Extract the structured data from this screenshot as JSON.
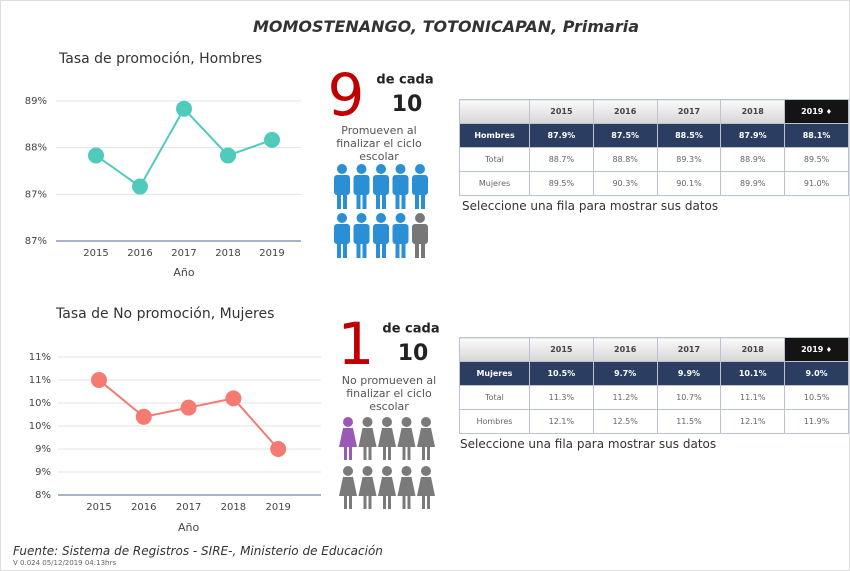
{
  "title": "MOMOSTENANGO, TOTONICAPAN, Primaria",
  "chart_data": [
    {
      "type": "line",
      "title": "Tasa de promoción, Hombres",
      "x_label": "Año",
      "categories": [
        "2015",
        "2016",
        "2017",
        "2018",
        "2019"
      ],
      "values": [
        87.9,
        87.5,
        88.5,
        87.9,
        88.1
      ],
      "color": "#4fcbbb",
      "ylim": [
        86.8,
        88.6
      ],
      "yticks": [
        {
          "value": 86.8,
          "label": "87%"
        },
        {
          "value": 87.4,
          "label": "87%"
        },
        {
          "value": 88.0,
          "label": "88%"
        },
        {
          "value": 88.6,
          "label": "89%"
        }
      ],
      "grid": true
    },
    {
      "type": "line",
      "title": "Tasa de No promoción, Mujeres",
      "x_label": "Año",
      "categories": [
        "2015",
        "2016",
        "2017",
        "2018",
        "2019"
      ],
      "values": [
        10.5,
        9.7,
        9.9,
        10.1,
        9.0
      ],
      "color": "#f47a72",
      "ylim": [
        8,
        11
      ],
      "yticks": [
        {
          "value": 8.0,
          "label": "8%"
        },
        {
          "value": 8.5,
          "label": "9%"
        },
        {
          "value": 9.0,
          "label": "9%"
        },
        {
          "value": 9.5,
          "label": "10%"
        },
        {
          "value": 10.0,
          "label": "10%"
        },
        {
          "value": 10.5,
          "label": "11%"
        },
        {
          "value": 11.0,
          "label": "11%"
        }
      ],
      "grid": true
    }
  ],
  "infographics": [
    {
      "number": "9",
      "connector": "de cada",
      "total": "10",
      "text": "Promueven al finalizar el ciclo escolar"
    },
    {
      "number": "1",
      "connector": "de cada",
      "total": "10",
      "text": "No promueven al finalizar el ciclo escolar"
    }
  ],
  "tables": [
    {
      "columns": [
        "2015",
        "2016",
        "2017",
        "2018",
        "2019"
      ],
      "rows": [
        {
          "label": "Hombres",
          "cells": [
            "87.9%",
            "87.5%",
            "88.5%",
            "87.9%",
            "88.1%"
          ]
        },
        {
          "label": "Total",
          "cells": [
            "88.7%",
            "88.8%",
            "89.3%",
            "88.9%",
            "89.5%"
          ]
        },
        {
          "label": "Mujeres",
          "cells": [
            "89.5%",
            "90.3%",
            "90.1%",
            "89.9%",
            "91.0%"
          ]
        }
      ],
      "hint": "Seleccione una fila para mostrar sus datos"
    },
    {
      "columns": [
        "2015",
        "2016",
        "2017",
        "2018",
        "2019"
      ],
      "rows": [
        {
          "label": "Mujeres",
          "cells": [
            "10.5%",
            "9.7%",
            "9.9%",
            "10.1%",
            "9.0%"
          ]
        },
        {
          "label": "Total",
          "cells": [
            "11.3%",
            "11.2%",
            "10.7%",
            "11.1%",
            "10.5%"
          ]
        },
        {
          "label": "Hombres",
          "cells": [
            "12.1%",
            "12.5%",
            "11.5%",
            "12.1%",
            "11.9%"
          ]
        }
      ],
      "hint": "Seleccione una fila para mostrar sus datos"
    }
  ],
  "footer": {
    "source": "Fuente: Sistema de Registros - SIRE-, Ministerio de Educación",
    "version": "V 0.024 05/12/2019 04:13hrs"
  }
}
